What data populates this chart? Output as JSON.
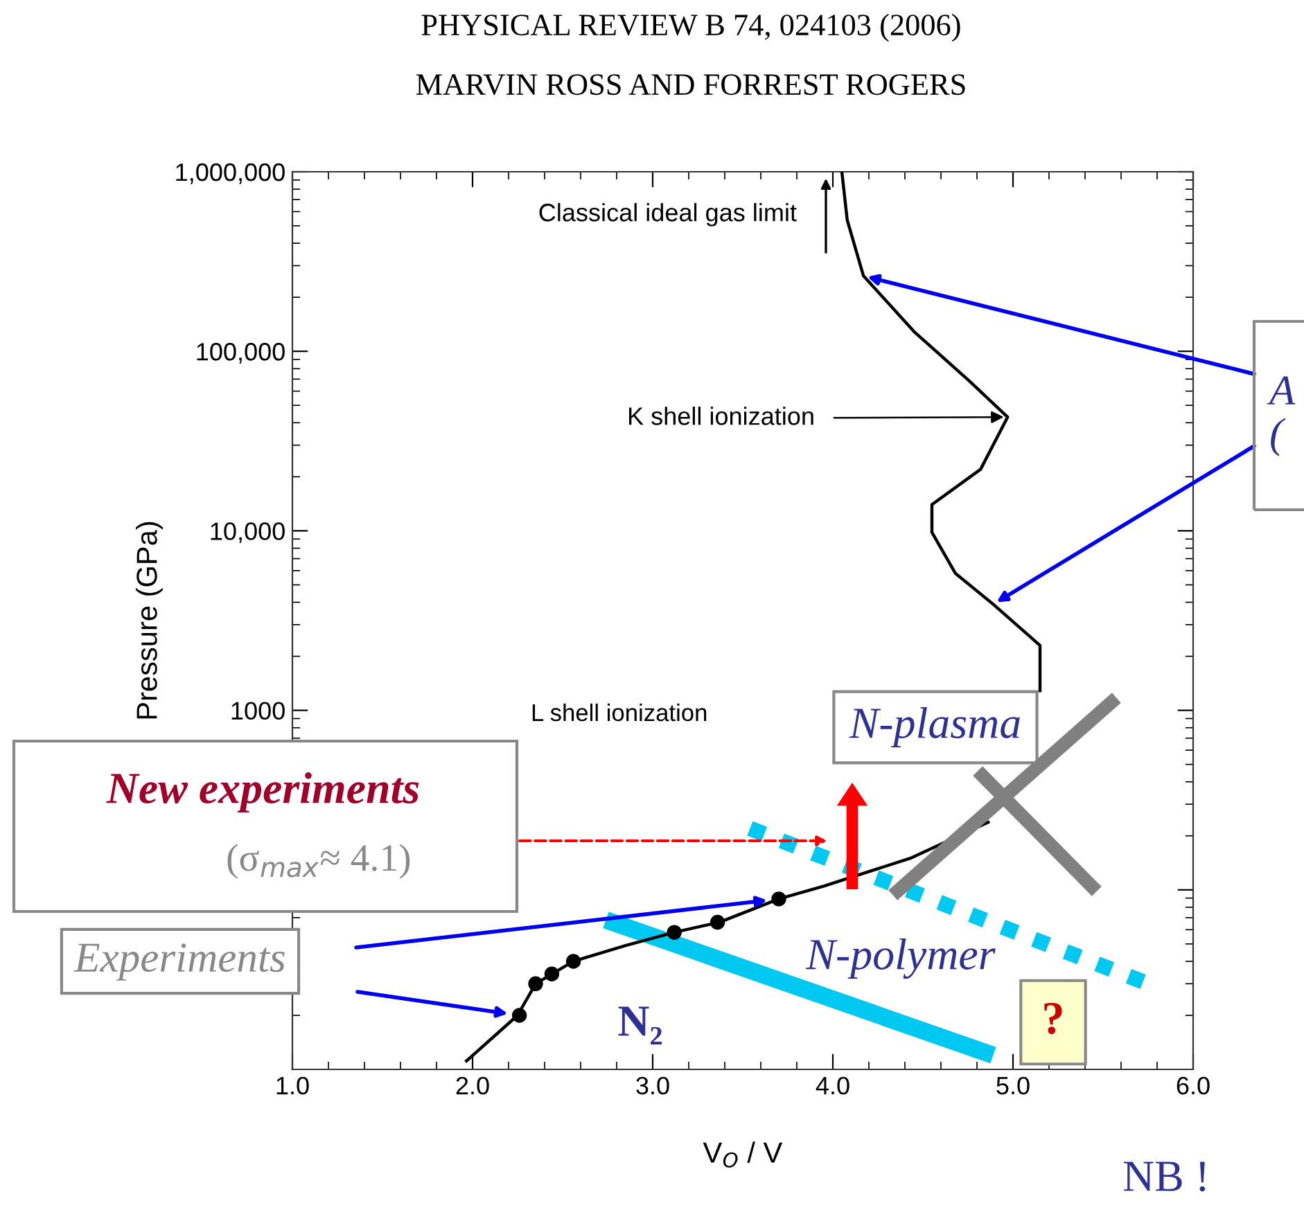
{
  "chart_data": {
    "type": "line",
    "title": "PHYSICAL REVIEW B 74, 024103 (2006)",
    "subtitle": "MARVIN ROSS AND FORREST ROGERS",
    "xlabel": "V$_{O}$ / V",
    "ylabel": "Pressure (GPa)",
    "log": "y",
    "xlim": [
      1.0,
      6.0
    ],
    "ylim": [
      10,
      1000000
    ],
    "xticks": [
      {
        "value": 1,
        "label": "1.0"
      },
      {
        "value": 2,
        "label": "2.0"
      },
      {
        "value": 3,
        "label": "3.0"
      },
      {
        "value": 4,
        "label": "4.0"
      },
      {
        "value": 5,
        "label": "5.0"
      },
      {
        "value": 6,
        "label": "6.0"
      }
    ],
    "yticks": [
      {
        "value": 100,
        "label": null
      },
      1000,
      {
        "value": 10000,
        "label": "10,000"
      },
      {
        "value": 100000,
        "label": "100,000"
      },
      {
        "value": 1000000,
        "label": "1,000,000"
      }
    ],
    "grid": false,
    "legend": false,
    "series": [
      {
        "color": "#000000",
        "line_style": "solid",
        "marker": "none",
        "x": [
          4.05,
          4.08,
          4.17,
          4.45,
          4.76,
          4.97,
          4.82,
          4.55,
          4.55,
          4.68,
          4.89,
          5.15,
          5.15,
          5.13,
          4.87,
          4.43,
          3.95,
          3.7,
          3.37,
          3.12,
          2.85,
          2.56,
          2.35,
          2.25,
          1.96
        ],
        "values": [
          1000000,
          537000,
          263000,
          129000,
          68000,
          43000,
          22000,
          14000,
          9800,
          5800,
          3900,
          2300,
          1260,
          null,
          240,
          150,
          105,
          89,
          66,
          58,
          49,
          40,
          30,
          20,
          11
        ]
      },
      {
        "type": "scatter",
        "color": "#000000",
        "marker": "circle",
        "x": [
          2.26,
          2.35,
          2.44,
          2.56,
          3.12,
          3.36,
          3.7
        ],
        "values": [
          20,
          30,
          34,
          40,
          58,
          66,
          89
        ]
      },
      {
        "color": "#00c8f0",
        "line_style": "solid",
        "marker": "none",
        "x": [
          2.74,
          4.89
        ],
        "values": [
          68,
          12
        ]
      },
      {
        "color": "#00c8f0",
        "line_style": "dotted",
        "marker": "none",
        "x": [
          3.54,
          5.75
        ],
        "values": [
          220,
          30
        ]
      }
    ],
    "annotations": [
      "Classical ideal gas limit",
      {
        "text": "K shell ionization",
        "x": 4.97,
        "y": 43000
      },
      "L shell ionization",
      "New experiments",
      "(σ$_{max}$≈ 4.1)",
      "Experiments",
      "N-plasma",
      "N-polymer",
      "N₂",
      "?",
      "NB !",
      "A\n("
    ]
  }
}
